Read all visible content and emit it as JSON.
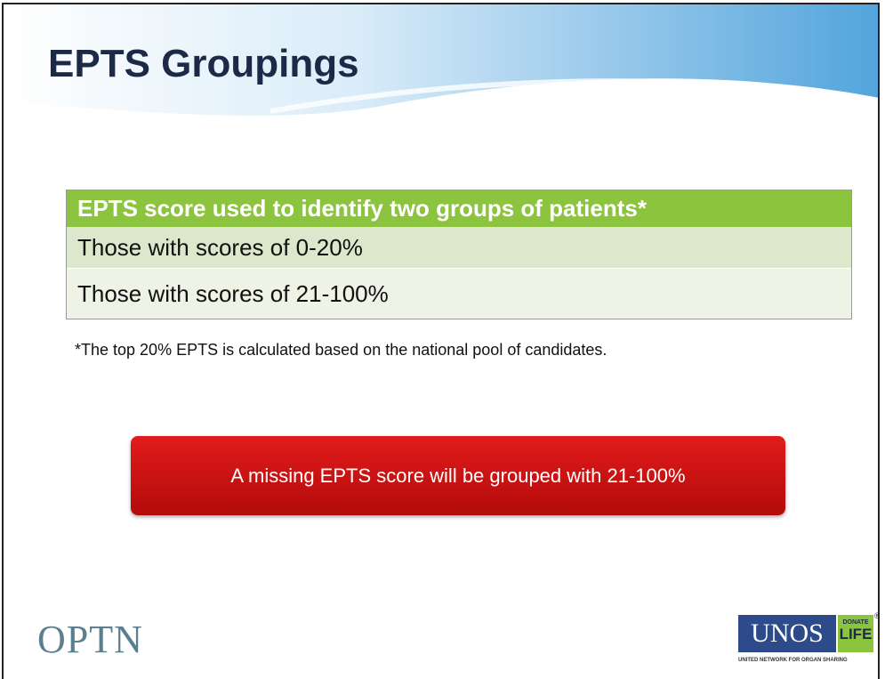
{
  "title": "EPTS Groupings",
  "table": {
    "header": "EPTS score used to identify two groups of patients*",
    "rows": [
      "Those with scores of 0-20%",
      "Those with scores of 21-100%"
    ]
  },
  "footnote": "*The top 20% EPTS is calculated based on the national pool of candidates.",
  "callout": "A missing EPTS score will be grouped with 21-100%",
  "logos": {
    "optn": "OPTN",
    "unos": "UNOS",
    "donate": "DONATE",
    "life": "LIFE",
    "registered": "®",
    "unos_tagline": "UNITED NETWORK FOR ORGAN SHARING"
  }
}
